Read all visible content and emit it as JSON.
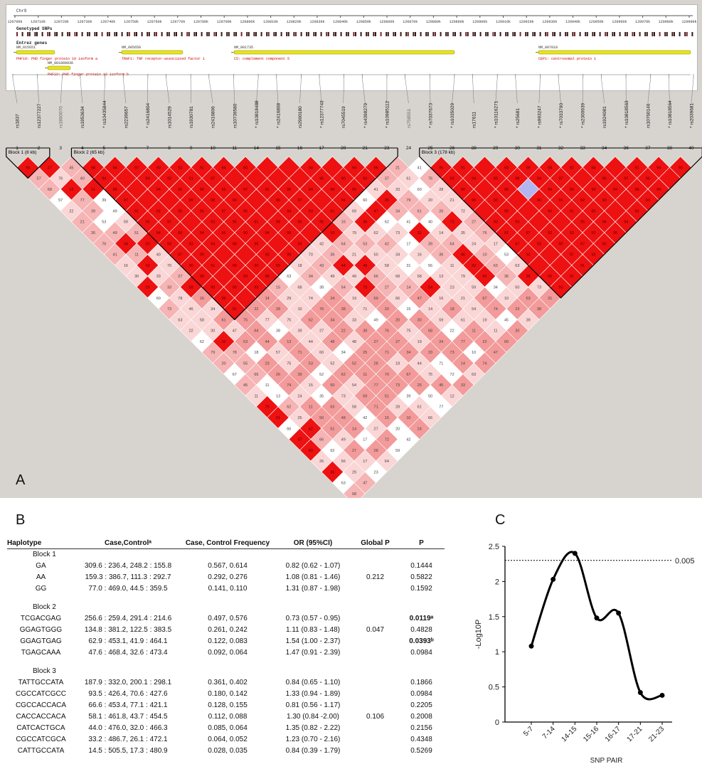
{
  "panel_a": {
    "label": "A",
    "chromosome": "Chr9",
    "ruler_ticks": [
      "120700k",
      "120710k",
      "120720k",
      "120730k",
      "120740k",
      "120750k",
      "120760k",
      "120770k",
      "120780k",
      "120790k",
      "120800k",
      "120810k",
      "120820k",
      "120830k",
      "120840k",
      "120850k",
      "120860k",
      "120870k",
      "120880k",
      "120890k",
      "120900k",
      "120910k",
      "120920k",
      "120930k",
      "120940k",
      "120950k",
      "120960k",
      "120970k",
      "120980k",
      "120990k"
    ],
    "track_genotyped": "Genotyped SNPs",
    "track_genes": "Entrez genes",
    "genes": [
      {
        "accession": "NM_015651",
        "desc": "PHF19: PHD finger protein 19 isoform a"
      },
      {
        "accession": "NM_005658",
        "desc": "TRAF1: TNF receptor-associated factor 1"
      },
      {
        "accession": "NM_001735",
        "desc": "C5: complement component 5"
      },
      {
        "accession": "NM_007018",
        "desc": "CEP1: centrosomal protein 1"
      },
      {
        "accession": "NM_001009936",
        "desc": "PHF19: PHD finger protein 19 isoform b"
      }
    ],
    "snps": [
      {
        "name": "rs1837",
        "idx": "1",
        "star": false,
        "gray": false
      },
      {
        "name": "rs12377227",
        "idx": "2",
        "star": false,
        "gray": false
      },
      {
        "name": "rs1860070",
        "idx": "3",
        "star": false,
        "gray": true
      },
      {
        "name": "rs1953634",
        "idx": "4",
        "star": false,
        "gray": false
      },
      {
        "name": "rs10435844",
        "idx": "5",
        "star": true,
        "gray": false
      },
      {
        "name": "rs2239657",
        "idx": "6",
        "star": false,
        "gray": false
      },
      {
        "name": "rs2416804",
        "idx": "7",
        "star": true,
        "gray": false
      },
      {
        "name": "rs1014529",
        "idx": "8",
        "star": false,
        "gray": false
      },
      {
        "name": "rs1930781",
        "idx": "9",
        "star": false,
        "gray": false
      },
      {
        "name": "rs2416806",
        "idx": "10",
        "star": false,
        "gray": false
      },
      {
        "name": "rs10739580",
        "idx": "11",
        "star": false,
        "gray": false
      },
      {
        "name": "rs10818488",
        "idx": "14",
        "star": true,
        "gray": false
      },
      {
        "name": "rs2416808",
        "idx": "15",
        "star": true,
        "gray": false
      },
      {
        "name": "rs2900180",
        "idx": "16",
        "star": false,
        "gray": false
      },
      {
        "name": "rs12377743",
        "idx": "17",
        "star": true,
        "gray": false
      },
      {
        "name": "rs7045519",
        "idx": "20",
        "star": false,
        "gray": false
      },
      {
        "name": "rs4398279",
        "idx": "21",
        "star": true,
        "gray": false
      },
      {
        "name": "rs10985112",
        "idx": "23",
        "star": true,
        "gray": false
      },
      {
        "name": "rs758551",
        "idx": "24",
        "star": false,
        "gray": true
      },
      {
        "name": "rs7037673",
        "idx": "25",
        "star": true,
        "gray": false
      },
      {
        "name": "rs1035029",
        "idx": "26",
        "star": true,
        "gray": false
      },
      {
        "name": "rs17611",
        "idx": "28",
        "star": false,
        "gray": false
      },
      {
        "name": "rs10116271",
        "idx": "29",
        "star": true,
        "gray": false
      },
      {
        "name": "rs25681",
        "idx": "30",
        "star": true,
        "gray": false
      },
      {
        "name": "rs993247",
        "idx": "31",
        "star": true,
        "gray": false
      },
      {
        "name": "rs7033790",
        "idx": "32",
        "star": true,
        "gray": false
      },
      {
        "name": "rs2300939",
        "idx": "33",
        "star": true,
        "gray": false
      },
      {
        "name": "rs1924081",
        "idx": "34",
        "star": false,
        "gray": false
      },
      {
        "name": "rs10818563",
        "idx": "36",
        "star": true,
        "gray": false
      },
      {
        "name": "rs10760146",
        "idx": "37",
        "star": false,
        "gray": false
      },
      {
        "name": "rs10818564",
        "idx": "38",
        "star": true,
        "gray": false
      },
      {
        "name": "rs2039681",
        "idx": "40",
        "star": true,
        "gray": false
      }
    ],
    "blocks": [
      {
        "label": "Block 1 (8 kb)",
        "from": 0,
        "to": 1
      },
      {
        "label": "Block 2 (65 kb)",
        "from": 3,
        "to": 17
      },
      {
        "label": "Block 3 (178 kb)",
        "from": 19,
        "to": 31
      }
    ],
    "ld_colors": {
      "strong": "#ee1111",
      "mid": "#f58f8f",
      "weak": "#fad6d6",
      "none": "#ffffff",
      "blue": "#b3b6ee"
    }
  },
  "panel_b": {
    "label": "B",
    "headers": [
      "Haplotype",
      "Case,Controlᵃ",
      "Case, Control Frequency",
      "OR (95%CI)",
      "Global P",
      "P"
    ],
    "blocks": [
      {
        "name": "Block 1",
        "global_p": "0.212",
        "rows": [
          {
            "hap": "GA",
            "cc": "309.6 : 236.4, 248.2 : 155.8",
            "freq": "0.567, 0.614",
            "or": "0.82 (0.62 - 1.07)",
            "p": "0.1444",
            "bold": false
          },
          {
            "hap": "AA",
            "cc": "159.3 : 386.7, 111.3 : 292.7",
            "freq": "0.292, 0.276",
            "or": "1.08 (0.81 - 1.46)",
            "p": "0.5822",
            "bold": false
          },
          {
            "hap": "GG",
            "cc": "77.0 : 469.0, 44.5 : 359.5",
            "freq": "0.141, 0.110",
            "or": "1.31 (0.87 - 1.98)",
            "p": "0.1592",
            "bold": false
          }
        ]
      },
      {
        "name": "Block 2",
        "global_p": "0.047",
        "rows": [
          {
            "hap": "TCGACGAG",
            "cc": "256.6 : 259.4, 291.4 : 214.6",
            "freq": "0.497, 0.576",
            "or": "0.73 (0.57 - 0.95)",
            "p": "0.0119ᵃ",
            "bold": true
          },
          {
            "hap": "GGAGTGGG",
            "cc": "134.8 : 381.2, 122.5 : 383.5",
            "freq": "0.261, 0.242",
            "or": "1.11 (0.83 - 1.48)",
            "p": "0.4828",
            "bold": false
          },
          {
            "hap": "GGAGTGAG",
            "cc": "62.9 : 453.1, 41.9 : 464.1",
            "freq": "0.122, 0.083",
            "or": "1.54 (1.00 - 2.37)",
            "p": "0.0393ᵇ",
            "bold": true
          },
          {
            "hap": "TGAGCAAA",
            "cc": "47.6 : 468.4, 32.6 : 473.4",
            "freq": "0.092, 0.064",
            "or": "1.47 (0.91 - 2.39)",
            "p": "0.0984",
            "bold": false
          }
        ]
      },
      {
        "name": "Block 3",
        "global_p": "0.106",
        "rows": [
          {
            "hap": "TATTGCCATA",
            "cc": "187.9 : 332.0, 200.1 : 298.1",
            "freq": "0.361, 0.402",
            "or": "0.84 (0.65 - 1.10)",
            "p": "0.1866",
            "bold": false
          },
          {
            "hap": "CGCCATCGCC",
            "cc": "93.5 : 426.4, 70.6 : 427.6",
            "freq": "0.180, 0.142",
            "or": "1.33 (0.94 - 1.89)",
            "p": "0.0984",
            "bold": false
          },
          {
            "hap": "CGCCACCACA",
            "cc": "66.6 : 453.4, 77.1 : 421.1",
            "freq": "0.128, 0.155",
            "or": "0.81 (0.56 - 1.17)",
            "p": "0.2205",
            "bold": false
          },
          {
            "hap": "CACCACCACA",
            "cc": "58.1 : 461.8, 43.7 : 454.5",
            "freq": "0.112, 0.088",
            "or": "1.30 (0.84 -2.00)",
            "p": "0.2008",
            "bold": false
          },
          {
            "hap": "CATCACTGCA",
            "cc": "44.0 : 476.0, 32.0 : 466.3",
            "freq": "0.085, 0.064",
            "or": "1.35 (0.82 - 2.22)",
            "p": "0.2156",
            "bold": false
          },
          {
            "hap": "CGCCATCGCA",
            "cc": "33.2 : 486.7, 26.1 : 472.1",
            "freq": "0.064, 0.052",
            "or": "1.23 (0.70 - 2.16)",
            "p": "0.4348",
            "bold": false
          },
          {
            "hap": "CATTGCCATA",
            "cc": "14.5 : 505.5, 17.3 : 480.9",
            "freq": "0.028, 0.035",
            "or": "0.84 (0.39 - 1.79)",
            "p": "0.5269",
            "bold": false
          }
        ]
      }
    ]
  },
  "chart_data": {
    "type": "line",
    "panel_label": "C",
    "categories": [
      "5-7",
      "7-14",
      "14-15",
      "15-16",
      "16-17",
      "17-21",
      "21-23"
    ],
    "values": [
      1.08,
      2.03,
      2.4,
      1.48,
      1.55,
      0.42,
      0.38
    ],
    "threshold": {
      "value": 2.3,
      "label": "0.005"
    },
    "ylabel": "-Log10P",
    "xlabel": "SNP PAIR",
    "ylim": [
      0,
      2.5
    ],
    "yticks": [
      "0",
      "0.5",
      "1",
      "1.5",
      "2",
      "2.5"
    ],
    "grid": false,
    "line_color": "#000000"
  }
}
